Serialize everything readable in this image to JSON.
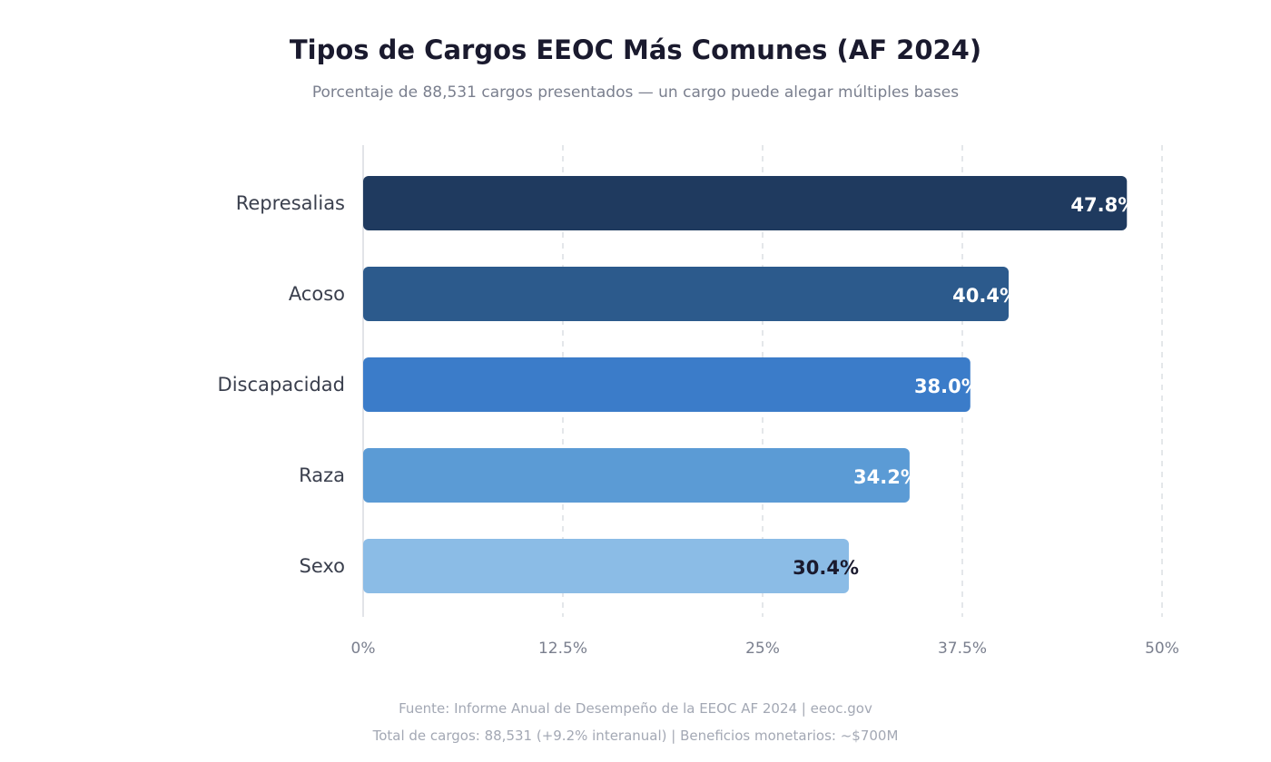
{
  "chart_data": {
    "type": "bar",
    "orientation": "horizontal",
    "title": "Tipos de Cargos EEOC Más Comunes (AF 2024)",
    "subtitle": "Porcentaje de 88,531 cargos presentados — un cargo puede alegar múltiples bases",
    "categories": [
      "Represalias",
      "Acoso",
      "Discapacidad",
      "Raza",
      "Sexo"
    ],
    "values": [
      47.8,
      40.4,
      38.0,
      34.2,
      30.4
    ],
    "data_labels": [
      "47.8%",
      "40.4%",
      "38.0%",
      "34.2%",
      "30.4%"
    ],
    "colors": [
      "#1f3a5f",
      "#2c5a8c",
      "#3b7cc9",
      "#5b9bd5",
      "#8bbce6"
    ],
    "label_colors": [
      "#ffffff",
      "#ffffff",
      "#ffffff",
      "#ffffff",
      "#1a1a2e"
    ],
    "xlim": [
      0,
      50
    ],
    "x_ticks": [
      0,
      12.5,
      25,
      37.5,
      50
    ],
    "x_tick_labels": [
      "0%",
      "12.5%",
      "25%",
      "37.5%",
      "50%"
    ],
    "xlabel": "",
    "ylabel": "",
    "grid": "vertical dashed"
  },
  "footer": {
    "source": "Fuente: Informe Anual de Desempeño de la EEOC AF 2024 | eeoc.gov",
    "totals": "Total de cargos: 88,531 (+9.2% interanual) | Beneficios monetarios: ~$700M"
  }
}
